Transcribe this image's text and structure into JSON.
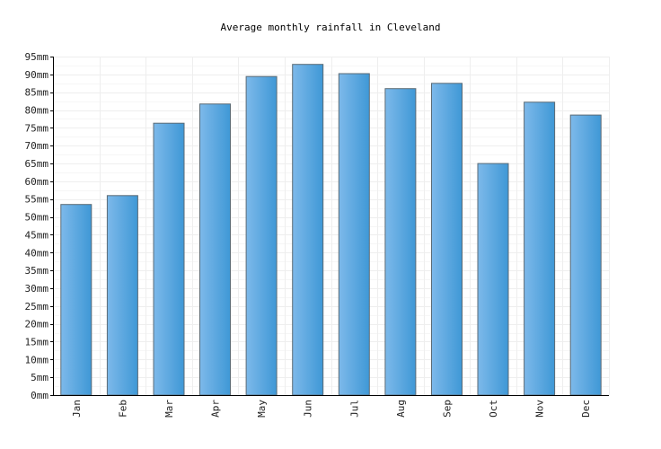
{
  "chart_data": {
    "type": "bar",
    "title": "Average monthly rainfall in Cleveland",
    "xlabel": "",
    "ylabel": "",
    "categories": [
      "Jan",
      "Feb",
      "Mar",
      "Apr",
      "May",
      "Jun",
      "Jul",
      "Aug",
      "Sep",
      "Oct",
      "Nov",
      "Dec"
    ],
    "values": [
      53.5,
      56,
      76.3,
      81.7,
      89.4,
      92.8,
      90.2,
      86,
      87.5,
      65,
      82.2,
      78.6
    ],
    "ylim": [
      0,
      95
    ],
    "yticks": [
      "0mm",
      "5mm",
      "10mm",
      "15mm",
      "20mm",
      "25mm",
      "30mm",
      "35mm",
      "40mm",
      "45mm",
      "50mm",
      "55mm",
      "60mm",
      "65mm",
      "70mm",
      "75mm",
      "80mm",
      "85mm",
      "90mm",
      "95mm"
    ],
    "grid": true,
    "colors": {
      "bar_light": "#7db9ea",
      "bar_dark": "#3f98d6",
      "bar_stroke": "#5a6a75",
      "grid": "#eeeeee",
      "axis": "#000000"
    }
  }
}
